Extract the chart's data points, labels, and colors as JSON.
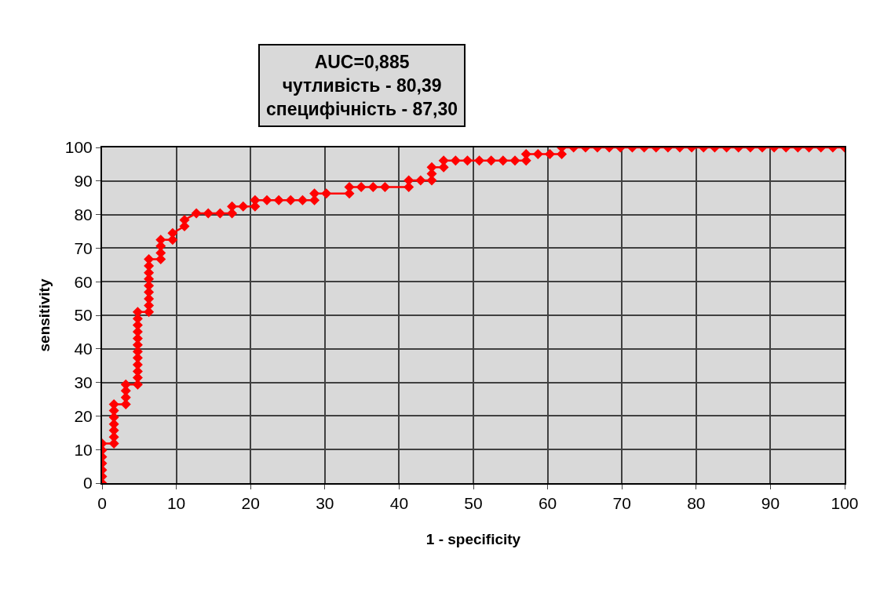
{
  "chart_data": {
    "type": "line",
    "title": "AUC=0,885\nчутливість - 80,39\nспецифічність - 87,30",
    "xlabel": "1 - specificity",
    "ylabel": "sensitivity",
    "xlim": [
      0,
      100
    ],
    "ylim": [
      0,
      100
    ],
    "xticks": [
      0,
      10,
      20,
      30,
      40,
      50,
      60,
      70,
      80,
      90,
      100
    ],
    "yticks": [
      0,
      10,
      20,
      30,
      40,
      50,
      60,
      70,
      80,
      90,
      100
    ],
    "grid": true,
    "marker": "diamond",
    "line_style": "solid",
    "series": [
      {
        "color": "#ff0000",
        "x": [
          0,
          0,
          0,
          0,
          0,
          0,
          0,
          1.6,
          1.6,
          1.6,
          1.6,
          1.6,
          1.6,
          1.6,
          3.2,
          3.2,
          3.2,
          3.2,
          4.8,
          4.8,
          4.8,
          4.8,
          4.8,
          4.8,
          4.8,
          4.8,
          4.8,
          4.8,
          4.8,
          4.8,
          6.3,
          6.3,
          6.3,
          6.3,
          6.3,
          6.3,
          6.3,
          6.3,
          6.3,
          7.9,
          7.9,
          7.9,
          7.9,
          9.5,
          9.5,
          11.1,
          11.1,
          12.7,
          14.3,
          15.9,
          17.5,
          17.5,
          19.0,
          20.6,
          20.6,
          22.2,
          23.8,
          25.4,
          27.0,
          28.6,
          28.6,
          30.2,
          33.3,
          33.3,
          34.9,
          36.5,
          38.1,
          41.3,
          41.3,
          42.9,
          44.4,
          44.4,
          44.4,
          46.0,
          46.0,
          47.6,
          49.2,
          50.8,
          52.4,
          54.0,
          55.6,
          57.1,
          57.1,
          58.7,
          60.3,
          61.9,
          61.9,
          63.5,
          65.1,
          66.7,
          68.3,
          69.8,
          71.4,
          73.0,
          74.6,
          76.2,
          77.8,
          79.4,
          81.0,
          82.5,
          84.1,
          85.7,
          87.3,
          88.9,
          90.5,
          92.1,
          93.7,
          95.2,
          96.8,
          98.4,
          100
        ],
        "values": [
          0,
          2,
          3.9,
          5.9,
          7.8,
          9.8,
          11.8,
          11.8,
          13.7,
          15.7,
          17.6,
          19.6,
          21.6,
          23.5,
          23.5,
          25.5,
          27.5,
          29.4,
          29.4,
          31.4,
          33.3,
          35.3,
          37.3,
          39.2,
          41.2,
          43.1,
          45.1,
          47.1,
          49,
          51,
          51,
          52.9,
          54.9,
          56.9,
          58.8,
          60.8,
          62.7,
          64.7,
          66.7,
          66.7,
          68.6,
          70.6,
          72.5,
          72.5,
          74.5,
          76.5,
          78.4,
          80.4,
          80.4,
          80.4,
          80.4,
          82.4,
          82.4,
          82.4,
          84.3,
          84.3,
          84.3,
          84.3,
          84.3,
          84.3,
          86.3,
          86.3,
          86.3,
          88.2,
          88.2,
          88.2,
          88.2,
          88.2,
          90.2,
          90.2,
          90.2,
          92.2,
          94.1,
          94.1,
          96.1,
          96.1,
          96.1,
          96.1,
          96.1,
          96.1,
          96.1,
          96.1,
          98,
          98,
          98,
          98,
          100,
          100,
          100,
          100,
          100,
          100,
          100,
          100,
          100,
          100,
          100,
          100,
          100,
          100,
          100,
          100,
          100,
          100,
          100,
          100,
          100,
          100,
          100,
          100,
          100
        ]
      }
    ]
  }
}
